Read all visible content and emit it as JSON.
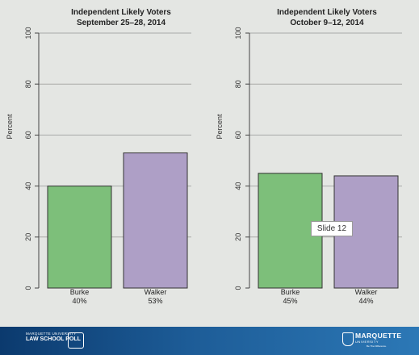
{
  "chart_data": [
    {
      "type": "bar",
      "title": "Independent Likely Voters",
      "subtitle": "September 25–28, 2014",
      "ylabel": "Percent",
      "ylim": [
        0,
        100
      ],
      "yticks": [
        "0",
        "20",
        "40",
        "60",
        "80",
        "100"
      ],
      "categories": [
        "Burke",
        "Walker"
      ],
      "values": [
        40,
        53
      ],
      "value_labels": [
        "40%",
        "53%"
      ],
      "bar_colors": [
        "#7dbf7a",
        "#ae9fc6"
      ],
      "grid": true
    },
    {
      "type": "bar",
      "title": "Independent Likely Voters",
      "subtitle": "October 9–12, 2014",
      "ylabel": "Percent",
      "ylim": [
        0,
        100
      ],
      "yticks": [
        "0",
        "20",
        "40",
        "60",
        "80",
        "100"
      ],
      "categories": [
        "Burke",
        "Walker"
      ],
      "values": [
        45,
        44
      ],
      "value_labels": [
        "45%",
        "44%"
      ],
      "bar_colors": [
        "#7dbf7a",
        "#ae9fc6"
      ],
      "grid": true
    }
  ],
  "tooltip": {
    "label": "Slide 12"
  },
  "footer": {
    "left_logo_small": "MARQUETTE UNIVERSITY",
    "left_logo_big": "LAW SCHOOL POLL",
    "right_logo_name": "MARQUETTE",
    "right_logo_sub": "UNIVERSITY",
    "right_logo_tag": "Be The Difference.",
    "colors": {
      "start": "#0b3a6e",
      "end": "#2c78b6"
    }
  }
}
